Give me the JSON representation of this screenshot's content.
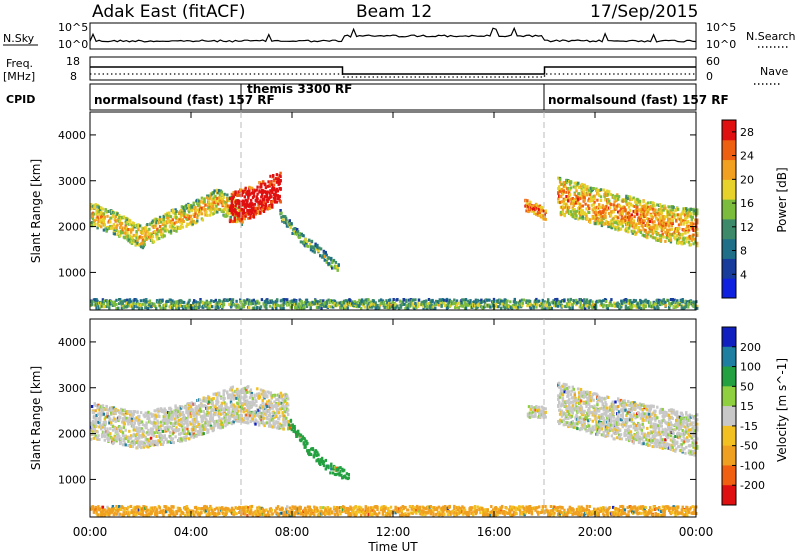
{
  "header": {
    "station": "Adak East (fitACF)",
    "beam": "Beam 12",
    "date": "17/Sep/2015"
  },
  "panels": {
    "nsky": {
      "left_label": "N.Sky",
      "right_label": "N.Search",
      "yticks_left": [
        "10^5",
        "10^0"
      ],
      "yticks_right": [
        "10^5",
        "10^0"
      ]
    },
    "freq": {
      "left_label": "Freq.",
      "left_unit": "[MHz]",
      "yticks_left": [
        "18",
        "8"
      ],
      "right_label": "Nave",
      "yticks_right": [
        "60",
        "0"
      ]
    },
    "cpid": {
      "label": "CPID",
      "modes": [
        {
          "name": "normalsound (fast) 157 RF",
          "start": 0,
          "end": 6
        },
        {
          "name": "themis 3300 RF",
          "start": 6,
          "end": 18
        },
        {
          "name": "normalsound (fast) 157 RF",
          "start": 18,
          "end": 24
        }
      ]
    }
  },
  "chart_data": [
    {
      "type": "heatmap",
      "title": "",
      "xlabel": "Time UT",
      "ylabel": "Slant Range [km]",
      "xlim": [
        0,
        24
      ],
      "ylim": [
        180,
        4500
      ],
      "xticks": [
        "00:00",
        "04:00",
        "08:00",
        "12:00",
        "16:00",
        "20:00",
        "00:00"
      ],
      "yticks": [
        1000,
        2000,
        3000,
        4000
      ],
      "colorbar": {
        "label": "Power [dB]",
        "ticks": [
          4,
          8,
          12,
          16,
          20,
          24,
          28
        ],
        "range": [
          0,
          30
        ],
        "colors": [
          "#1020e0",
          "#183c9c",
          "#1f6f88",
          "#3c8a6a",
          "#7cbc3c",
          "#e6d22a",
          "#f2a020",
          "#ee6010",
          "#e01010"
        ]
      },
      "bands": [
        {
          "t_start": 0.0,
          "t_end": 6.0,
          "range_center": [
            2300,
            2100,
            1800,
            2100,
            2300,
            2600,
            2300
          ],
          "width": 500,
          "power": 14
        },
        {
          "t_start": 5.5,
          "t_end": 7.5,
          "range_center": [
            2400,
            2600,
            2900
          ],
          "width": 700,
          "power": 26
        },
        {
          "t_start": 7.5,
          "t_end": 9.8,
          "range_center": [
            2300,
            1800,
            1500,
            1100
          ],
          "width": 220,
          "power": 8
        },
        {
          "t_start": 17.2,
          "t_end": 18.0,
          "range_center": [
            2500,
            2300
          ],
          "width": 250,
          "power": 20
        },
        {
          "t_start": 18.5,
          "t_end": 24.0,
          "range_center": [
            2700,
            2500,
            2300,
            2100,
            2000
          ],
          "width": 800,
          "power": 16
        },
        {
          "t_start": 0.0,
          "t_end": 24.0,
          "range_center": [
            320
          ],
          "width": 250,
          "power": 8
        }
      ]
    },
    {
      "type": "heatmap",
      "title": "",
      "xlabel": "Time UT",
      "ylabel": "Slant Range [km]",
      "xlim": [
        0,
        24
      ],
      "ylim": [
        180,
        4500
      ],
      "xticks": [
        "00:00",
        "04:00",
        "08:00",
        "12:00",
        "16:00",
        "20:00",
        "00:00"
      ],
      "yticks": [
        1000,
        2000,
        3000,
        4000
      ],
      "colorbar": {
        "label": "Velocity [m s^-1]",
        "ticks": [
          200,
          100,
          50,
          15,
          -15,
          -50,
          -100,
          -200
        ],
        "colors": [
          "#1020c0",
          "#1f7fa0",
          "#23a040",
          "#8fd040",
          "#c8c8c8",
          "#f2c020",
          "#f0a020",
          "#f06010",
          "#e01010"
        ]
      },
      "bands": [
        {
          "t_start": 0.0,
          "t_end": 7.8,
          "range_center": [
            2300,
            2100,
            2300,
            2700,
            2500
          ],
          "width": 800,
          "velocity": 0
        },
        {
          "t_start": 7.8,
          "t_end": 10.2,
          "range_center": [
            2300,
            1700,
            1300,
            1100
          ],
          "width": 220,
          "velocity": 80
        },
        {
          "t_start": 17.3,
          "t_end": 18.0,
          "range_center": [
            2500
          ],
          "width": 250,
          "velocity": 0
        },
        {
          "t_start": 18.5,
          "t_end": 24.0,
          "range_center": [
            2700,
            2400,
            2200,
            2000
          ],
          "width": 900,
          "velocity": 0
        },
        {
          "t_start": 0.0,
          "t_end": 24.0,
          "range_center": [
            320
          ],
          "width": 250,
          "velocity": -60
        }
      ]
    }
  ]
}
